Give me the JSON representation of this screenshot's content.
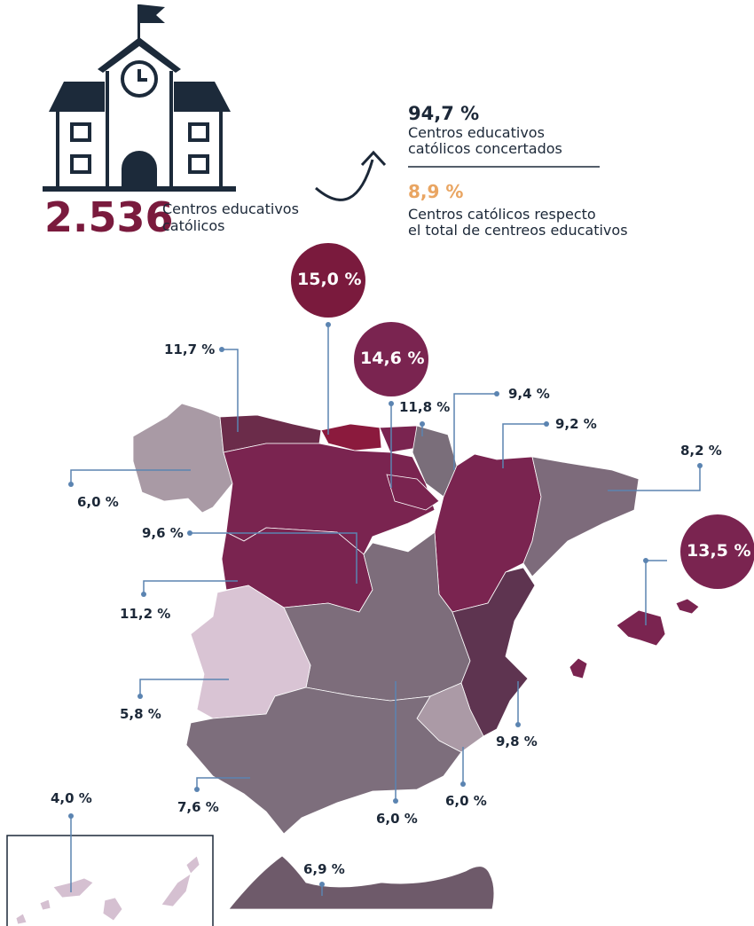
{
  "header": {
    "total": "2.536",
    "total_caption": [
      "Centros educativos",
      "católicos"
    ],
    "stats": [
      {
        "value": "94,7 %",
        "caption": [
          "Centros educativos",
          "católicos concertados"
        ]
      },
      {
        "value": "8,9 %",
        "caption": [
          "Centros católicos respecto",
          "el total de centreos educativos"
        ]
      }
    ]
  },
  "map": {
    "labels": [
      "15,0 %",
      "14,6 %",
      "13,5 %",
      "11,7 %",
      "11,8 %",
      "9,4 %",
      "9,2 %",
      "8,2 %",
      "6,0 %",
      "9,6 %",
      "11,2 %",
      "5,8 %",
      "7,6 %",
      "6,0 %",
      "6,0 %",
      "9,8 %",
      "4,0 %",
      "6,9 %"
    ]
  }
}
